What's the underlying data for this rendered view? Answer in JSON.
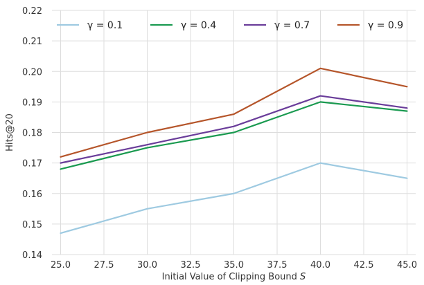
{
  "chart_data": {
    "type": "line",
    "xlabel": "Initial Value of Clipping Bound S",
    "ylabel": "Hits@20",
    "x": [
      25.0,
      30.0,
      35.0,
      40.0,
      45.0
    ],
    "xlim": [
      24.5,
      45.5
    ],
    "ylim": [
      0.14,
      0.22
    ],
    "xticks": [
      "25.0",
      "27.5",
      "30.0",
      "32.5",
      "35.0",
      "37.5",
      "40.0",
      "42.5",
      "45.0"
    ],
    "yticks": [
      "0.14",
      "0.15",
      "0.16",
      "0.17",
      "0.18",
      "0.19",
      "0.20",
      "0.21",
      "0.22"
    ],
    "grid": true,
    "legend_position": "top",
    "series": [
      {
        "name": "γ = 0.1",
        "color": "#9ecae1",
        "values": [
          0.147,
          0.155,
          0.16,
          0.17,
          0.165
        ]
      },
      {
        "name": "γ = 0.4",
        "color": "#1a9a50",
        "values": [
          0.168,
          0.175,
          0.18,
          0.19,
          0.187
        ]
      },
      {
        "name": "γ = 0.7",
        "color": "#6a3d9a",
        "values": [
          0.17,
          0.176,
          0.182,
          0.192,
          0.188
        ]
      },
      {
        "name": "γ = 0.9",
        "color": "#b5552a",
        "values": [
          0.172,
          0.18,
          0.186,
          0.201,
          0.195
        ]
      }
    ]
  }
}
